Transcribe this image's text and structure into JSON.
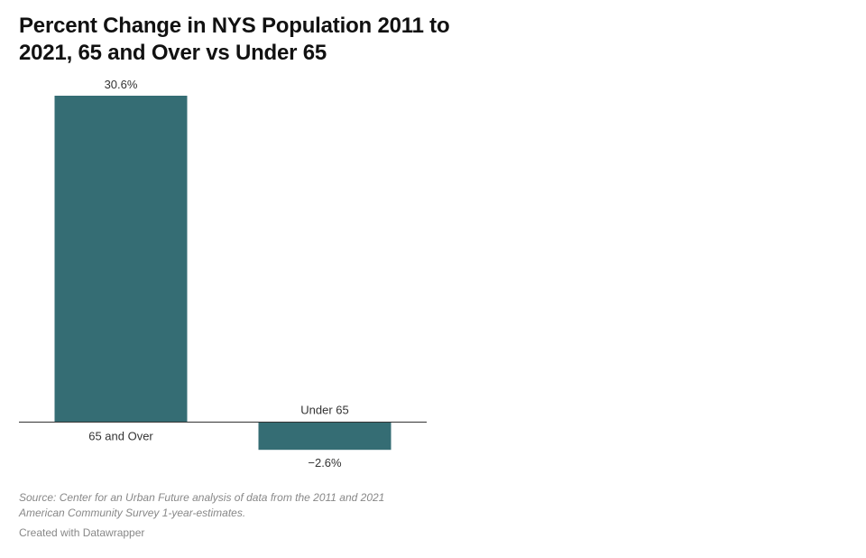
{
  "chart_data": {
    "type": "bar",
    "title": "Percent Change in NYS Population 2011 to 2021, 65 and Over vs Under 65",
    "categories": [
      "65 and Over",
      "Under 65"
    ],
    "values": [
      30.6,
      -2.6
    ],
    "value_labels": [
      "30.6%",
      "−2.6%"
    ],
    "unit": "%",
    "bar_color": "#356d74",
    "baseline": 0,
    "grid": false,
    "legend": "none"
  },
  "source": "Source: Center for an Urban Future analysis of data from the 2011 and 2021 American Community Survey 1-year-estimates.",
  "credit": "Created with Datawrapper"
}
